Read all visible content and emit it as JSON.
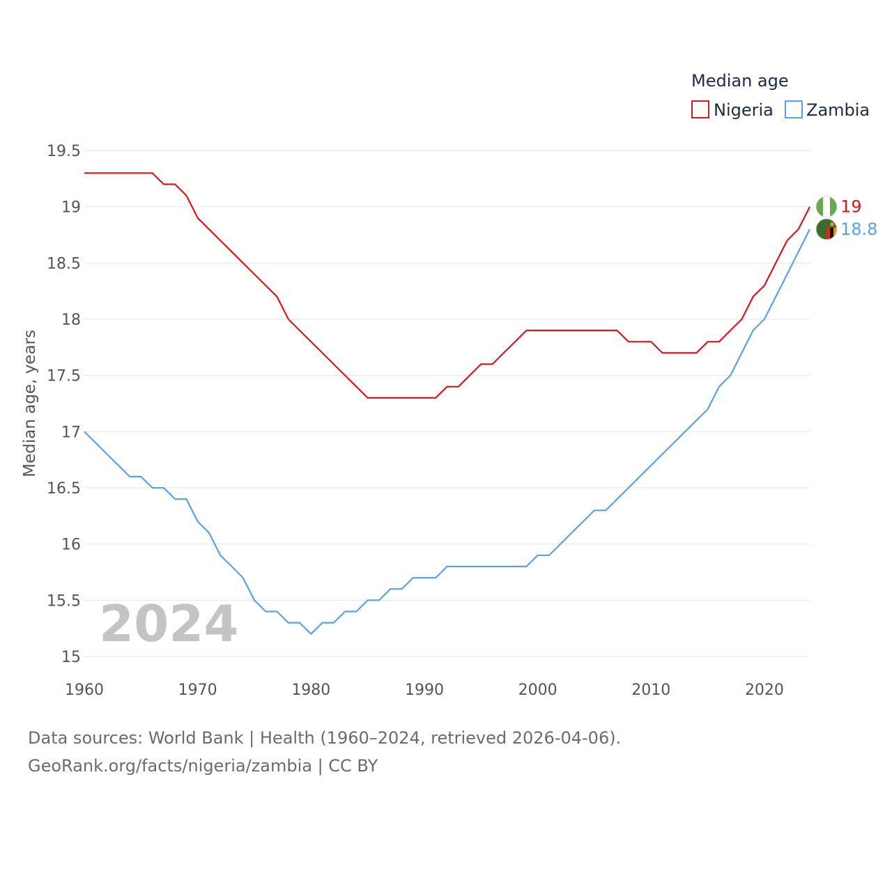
{
  "footer": {
    "sources": "Data sources: World Bank | Health (1960–2024, retrieved 2026-04-06).",
    "credit": "GeoRank.org/facts/nigeria/zambia | CC BY"
  },
  "chart_data": {
    "type": "line",
    "title": "Median age",
    "xlabel": "",
    "ylabel": "Median age, years",
    "year_label": "2024",
    "xlim": [
      1960,
      2024
    ],
    "ylim": [
      15,
      19.5
    ],
    "x_ticks": [
      1960,
      1970,
      1980,
      1990,
      2000,
      2010,
      2020
    ],
    "y_ticks": [
      15,
      15.5,
      16,
      16.5,
      17,
      17.5,
      18,
      18.5,
      19,
      19.5
    ],
    "y_tick_labels": [
      "15",
      "15.5",
      "16",
      "16.5",
      "17",
      "17.5",
      "18",
      "18.5",
      "19",
      "19.5"
    ],
    "grid": true,
    "legend_position": "top-right",
    "x": [
      1960,
      1961,
      1962,
      1963,
      1964,
      1965,
      1966,
      1967,
      1968,
      1969,
      1970,
      1971,
      1972,
      1973,
      1974,
      1975,
      1976,
      1977,
      1978,
      1979,
      1980,
      1981,
      1982,
      1983,
      1984,
      1985,
      1986,
      1987,
      1988,
      1989,
      1990,
      1991,
      1992,
      1993,
      1994,
      1995,
      1996,
      1997,
      1998,
      1999,
      2000,
      2001,
      2002,
      2003,
      2004,
      2005,
      2006,
      2007,
      2008,
      2009,
      2010,
      2011,
      2012,
      2013,
      2014,
      2015,
      2016,
      2017,
      2018,
      2019,
      2020,
      2021,
      2022,
      2023,
      2024
    ],
    "series": [
      {
        "name": "Nigeria",
        "color": "#e0151b",
        "end_label": "19",
        "flag": "nigeria-flag",
        "values": [
          19.3,
          19.3,
          19.3,
          19.3,
          19.3,
          19.3,
          19.3,
          19.2,
          19.2,
          19.1,
          18.9,
          18.8,
          18.7,
          18.6,
          18.5,
          18.4,
          18.3,
          18.2,
          18.0,
          17.9,
          17.8,
          17.7,
          17.6,
          17.5,
          17.4,
          17.3,
          17.3,
          17.3,
          17.3,
          17.3,
          17.3,
          17.3,
          17.4,
          17.4,
          17.5,
          17.6,
          17.6,
          17.7,
          17.8,
          17.9,
          17.9,
          17.9,
          17.9,
          17.9,
          17.9,
          17.9,
          17.9,
          17.9,
          17.8,
          17.8,
          17.8,
          17.7,
          17.7,
          17.7,
          17.7,
          17.8,
          17.8,
          17.9,
          18.0,
          18.2,
          18.3,
          18.5,
          18.7,
          18.8,
          19.0
        ]
      },
      {
        "name": "Zambia",
        "color": "#5aa2e6",
        "end_label": "18.8",
        "flag": "zambia-flag",
        "values": [
          17.0,
          16.9,
          16.8,
          16.7,
          16.6,
          16.6,
          16.5,
          16.5,
          16.4,
          16.4,
          16.2,
          16.1,
          15.9,
          15.8,
          15.7,
          15.5,
          15.4,
          15.4,
          15.3,
          15.3,
          15.2,
          15.3,
          15.3,
          15.4,
          15.4,
          15.5,
          15.5,
          15.6,
          15.6,
          15.7,
          15.7,
          15.7,
          15.8,
          15.8,
          15.8,
          15.8,
          15.8,
          15.8,
          15.8,
          15.8,
          15.9,
          15.9,
          16.0,
          16.1,
          16.2,
          16.3,
          16.3,
          16.4,
          16.5,
          16.6,
          16.7,
          16.8,
          16.9,
          17.0,
          17.1,
          17.2,
          17.4,
          17.5,
          17.7,
          17.9,
          18.0,
          18.2,
          18.4,
          18.6,
          18.8
        ]
      }
    ]
  }
}
